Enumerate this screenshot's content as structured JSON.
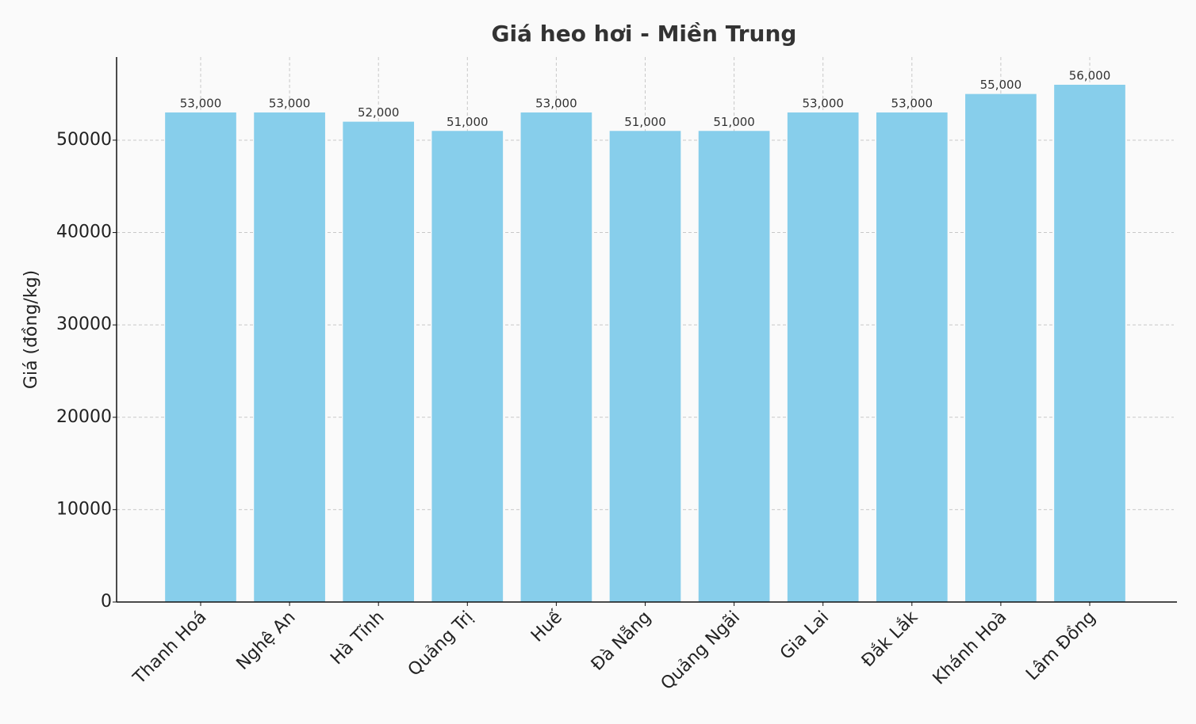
{
  "chart_data": {
    "type": "bar",
    "title": "Giá heo hơi - Miền Trung",
    "y_label": "Giá (đồng/kg)",
    "categories": [
      "Thanh Hoá",
      "Nghệ An",
      "Hà Tĩnh",
      "Quảng Trị",
      "Huế",
      "Đà Nẵng",
      "Quảng Ngãi",
      "Gia Lai",
      "Đắk Lắk",
      "Khánh Hoà",
      "Lâm Đồng"
    ],
    "values": [
      53000,
      53000,
      52000,
      51000,
      53000,
      51000,
      51000,
      53000,
      53000,
      55000,
      56000
    ],
    "value_labels": [
      "53,000",
      "53,000",
      "52,000",
      "51,000",
      "53,000",
      "51,000",
      "51,000",
      "53,000",
      "53,000",
      "55,000",
      "56,000"
    ],
    "color": "#87ceeb",
    "ylim": [
      0,
      59000
    ],
    "yticks": [
      0,
      10000,
      20000,
      30000,
      40000,
      50000
    ],
    "grid": true
  }
}
